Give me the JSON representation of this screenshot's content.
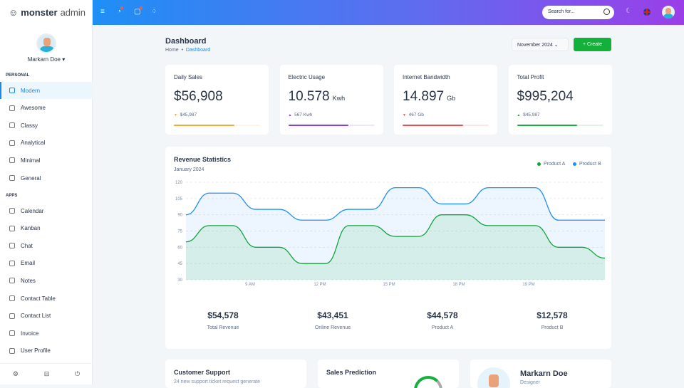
{
  "brand": {
    "name_bold": "monster",
    "name_light": "admin"
  },
  "user": {
    "name": "Markarn Doe"
  },
  "sidebar": {
    "personal_title": "PERSONAL",
    "apps_title": "APPS",
    "personal": [
      {
        "label": "Modern",
        "icon": "monitor-icon",
        "active": true
      },
      {
        "label": "Awesome",
        "icon": "grid-icon"
      },
      {
        "label": "Classy",
        "icon": "box-icon"
      },
      {
        "label": "Analytical",
        "icon": "building-icon"
      },
      {
        "label": "Minimal",
        "icon": "home-icon"
      },
      {
        "label": "General",
        "icon": "cart-icon"
      }
    ],
    "apps": [
      {
        "label": "Calendar",
        "icon": "calendar-icon"
      },
      {
        "label": "Kanban",
        "icon": "kanban-icon"
      },
      {
        "label": "Chat",
        "icon": "chat-icon"
      },
      {
        "label": "Email",
        "icon": "mail-icon"
      },
      {
        "label": "Notes",
        "icon": "notes-icon"
      },
      {
        "label": "Contact Table",
        "icon": "contact-table-icon"
      },
      {
        "label": "Contact List",
        "icon": "phone-icon"
      },
      {
        "label": "Invoice",
        "icon": "invoice-icon"
      },
      {
        "label": "User Profile",
        "icon": "user-icon"
      }
    ],
    "footer_icons": [
      "settings-icon",
      "inbox-icon",
      "power-icon"
    ]
  },
  "topbar": {
    "search_placeholder": "Search for..."
  },
  "header": {
    "title": "Dashboard",
    "crumb_home": "Home",
    "crumb_sep": "•",
    "crumb_current": "Dashboard",
    "date_select": "November 2024",
    "create_label": "+ Create"
  },
  "stats": [
    {
      "label": "Daily Sales",
      "value": "$56,908",
      "unit": "",
      "sub": "$45,987",
      "trend": "down",
      "color": "#f4a838",
      "progress": 70
    },
    {
      "label": "Electric Usage",
      "value": "10.578",
      "unit": "Kwh",
      "sub": "567 Kwh",
      "trend": "up",
      "color": "#8a3fe0",
      "progress": 70
    },
    {
      "label": "Internet Bandwidth",
      "value": "14.897",
      "unit": "Gb",
      "sub": "467 Gb",
      "trend": "down",
      "color": "#ec4e4e",
      "progress": 70
    },
    {
      "label": "Total Profit",
      "value": "$995,204",
      "unit": "",
      "sub": "$45,987",
      "trend": "up",
      "color": "#13b03c",
      "progress": 70
    }
  ],
  "revenue": {
    "title": "Revenue Statistics",
    "subtitle": "January 2024",
    "totals": [
      {
        "value": "$54,578",
        "label": "Total Revenue"
      },
      {
        "value": "$43,451",
        "label": "Online Revenue"
      },
      {
        "value": "$44,578",
        "label": "Product A"
      },
      {
        "value": "$12,578",
        "label": "Product B"
      }
    ]
  },
  "chart_data": {
    "type": "area",
    "ylim": [
      30,
      120
    ],
    "yticks": [
      30,
      45,
      60,
      75,
      90,
      105,
      120
    ],
    "xtick_labels": [
      "9 AM",
      "12 PM",
      "15 PM",
      "18 PM",
      "19 PM"
    ],
    "grid": true,
    "legend": "top-right",
    "series": [
      {
        "name": "Product A",
        "color": "#13a33c",
        "values": [
          65,
          80,
          80,
          60,
          60,
          45,
          45,
          80,
          80,
          70,
          70,
          90,
          90,
          80,
          80,
          80,
          60,
          60,
          50
        ]
      },
      {
        "name": "Product B",
        "color": "#1e8ff5",
        "values": [
          90,
          110,
          110,
          95,
          95,
          85,
          85,
          95,
          95,
          115,
          115,
          100,
          100,
          115,
          115,
          115,
          85,
          85,
          85
        ]
      }
    ]
  },
  "bottom": {
    "support_title": "Customer Support",
    "support_text": "24 new support ticket request generate",
    "prediction_title": "Sales Prediction",
    "profile_name": "Markarn Doe",
    "profile_role": "Designer"
  }
}
